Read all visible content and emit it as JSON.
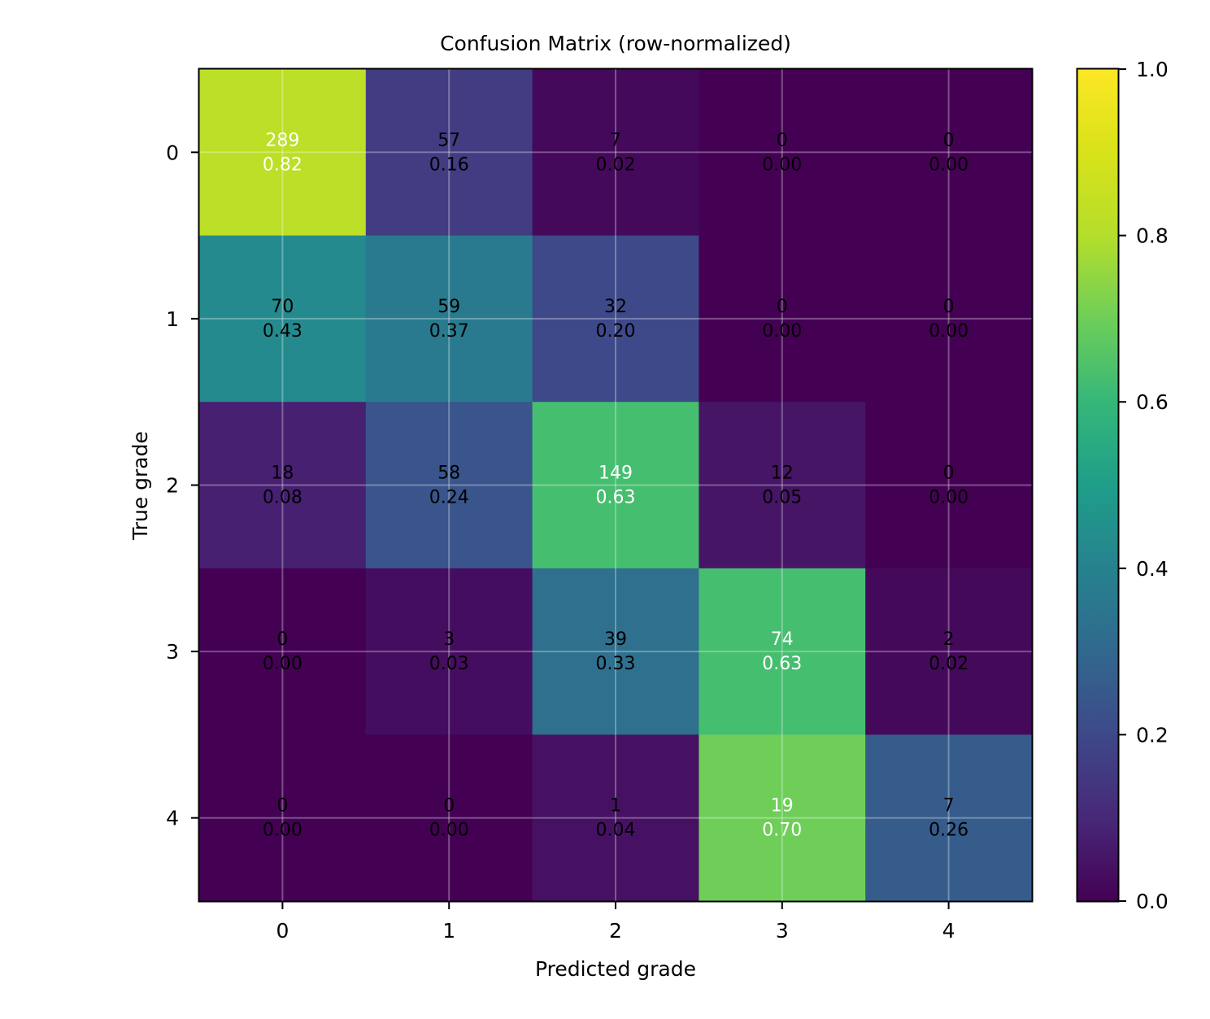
{
  "chart_data": {
    "type": "heatmap",
    "title": "Confusion Matrix (row-normalized)",
    "xlabel": "Predicted grade",
    "ylabel": "True grade",
    "x_categories": [
      "0",
      "1",
      "2",
      "3",
      "4"
    ],
    "y_categories": [
      "0",
      "1",
      "2",
      "3",
      "4"
    ],
    "counts": [
      [
        289,
        57,
        7,
        0,
        0
      ],
      [
        70,
        59,
        32,
        0,
        0
      ],
      [
        18,
        58,
        149,
        12,
        0
      ],
      [
        0,
        3,
        39,
        74,
        2
      ],
      [
        0,
        0,
        1,
        19,
        7
      ]
    ],
    "normalized": [
      [
        0.82,
        0.16,
        0.02,
        0.0,
        0.0
      ],
      [
        0.43,
        0.37,
        0.2,
        0.0,
        0.0
      ],
      [
        0.08,
        0.24,
        0.63,
        0.05,
        0.0
      ],
      [
        0.0,
        0.03,
        0.33,
        0.63,
        0.02
      ],
      [
        0.0,
        0.0,
        0.04,
        0.7,
        0.26
      ]
    ],
    "colorbar": {
      "colormap": "viridis",
      "range": [
        0.0,
        1.0
      ],
      "ticks": [
        "0.0",
        "0.2",
        "0.4",
        "0.6",
        "0.8",
        "1.0"
      ]
    },
    "grid": true,
    "annotation_text_colors": {
      "dark": "#000000",
      "light": "#ffffff"
    }
  }
}
